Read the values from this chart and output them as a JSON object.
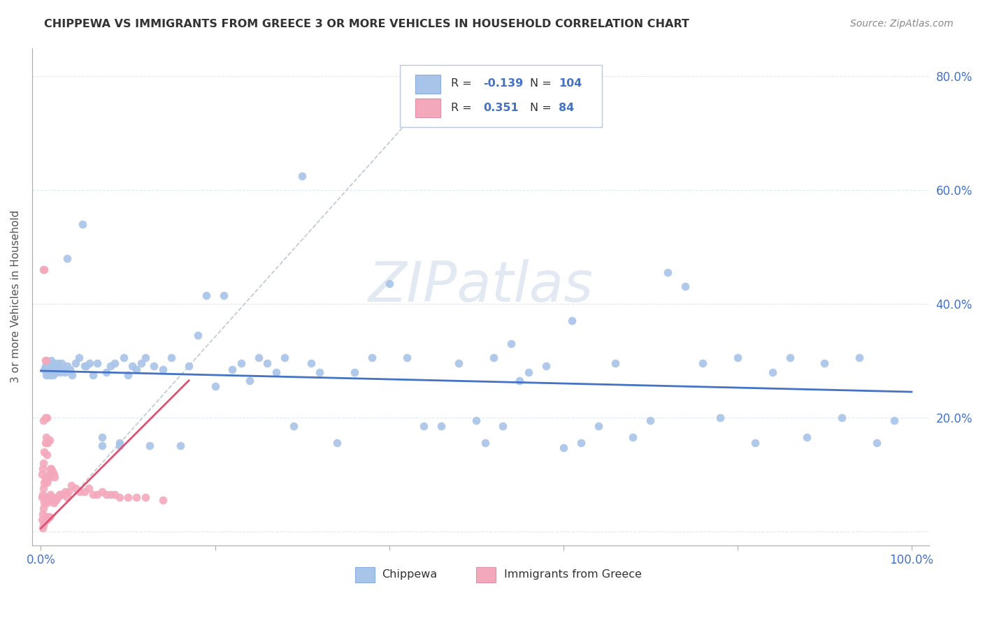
{
  "title": "CHIPPEWA VS IMMIGRANTS FROM GREECE 3 OR MORE VEHICLES IN HOUSEHOLD CORRELATION CHART",
  "source": "Source: ZipAtlas.com",
  "ylabel": "3 or more Vehicles in Household",
  "xlim": [
    -0.01,
    1.02
  ],
  "ylim": [
    -0.025,
    0.85
  ],
  "x_ticks": [
    0.0,
    0.2,
    0.4,
    0.6,
    0.8,
    1.0
  ],
  "x_tick_labels": [
    "0.0%",
    "",
    "",
    "",
    "",
    "100.0%"
  ],
  "y_ticks": [
    0.0,
    0.2,
    0.4,
    0.6,
    0.8
  ],
  "y_tick_labels_right": [
    "",
    "20.0%",
    "40.0%",
    "60.0%",
    "80.0%"
  ],
  "legend_R1": "-0.139",
  "legend_N1": "104",
  "legend_R2": "0.351",
  "legend_N2": "84",
  "blue_color": "#a8c4e8",
  "pink_color": "#f4a8bc",
  "trend_blue": "#4472c4",
  "trend_pink": "#e05070",
  "label_color": "#4472c4",
  "watermark": "ZIPatlas",
  "grid_color": "#e0e8f4",
  "chippewa_x": [
    0.004,
    0.005,
    0.006,
    0.007,
    0.008,
    0.009,
    0.01,
    0.011,
    0.012,
    0.013,
    0.014,
    0.015,
    0.016,
    0.017,
    0.018,
    0.019,
    0.02,
    0.022,
    0.024,
    0.026,
    0.028,
    0.03,
    0.033,
    0.036,
    0.04,
    0.044,
    0.048,
    0.052,
    0.056,
    0.06,
    0.065,
    0.07,
    0.075,
    0.08,
    0.085,
    0.09,
    0.095,
    0.1,
    0.105,
    0.11,
    0.115,
    0.12,
    0.125,
    0.13,
    0.14,
    0.15,
    0.16,
    0.17,
    0.18,
    0.19,
    0.2,
    0.21,
    0.22,
    0.23,
    0.24,
    0.25,
    0.26,
    0.27,
    0.28,
    0.29,
    0.3,
    0.31,
    0.32,
    0.34,
    0.36,
    0.38,
    0.4,
    0.42,
    0.44,
    0.46,
    0.48,
    0.5,
    0.51,
    0.52,
    0.53,
    0.54,
    0.55,
    0.56,
    0.58,
    0.6,
    0.61,
    0.62,
    0.64,
    0.66,
    0.68,
    0.7,
    0.72,
    0.74,
    0.76,
    0.78,
    0.8,
    0.82,
    0.84,
    0.86,
    0.88,
    0.9,
    0.92,
    0.94,
    0.96,
    0.98,
    0.03,
    0.05,
    0.07,
    0.09
  ],
  "chippewa_y": [
    0.285,
    0.29,
    0.275,
    0.295,
    0.28,
    0.285,
    0.275,
    0.29,
    0.3,
    0.285,
    0.275,
    0.295,
    0.285,
    0.28,
    0.285,
    0.29,
    0.295,
    0.28,
    0.295,
    0.285,
    0.28,
    0.29,
    0.285,
    0.275,
    0.295,
    0.305,
    0.54,
    0.29,
    0.295,
    0.275,
    0.295,
    0.15,
    0.28,
    0.29,
    0.295,
    0.155,
    0.305,
    0.275,
    0.29,
    0.285,
    0.295,
    0.305,
    0.15,
    0.29,
    0.285,
    0.305,
    0.15,
    0.29,
    0.345,
    0.415,
    0.255,
    0.415,
    0.285,
    0.295,
    0.265,
    0.305,
    0.295,
    0.28,
    0.305,
    0.185,
    0.625,
    0.295,
    0.28,
    0.155,
    0.28,
    0.305,
    0.435,
    0.305,
    0.185,
    0.185,
    0.295,
    0.195,
    0.155,
    0.305,
    0.185,
    0.33,
    0.265,
    0.28,
    0.29,
    0.147,
    0.37,
    0.155,
    0.185,
    0.295,
    0.165,
    0.195,
    0.455,
    0.43,
    0.295,
    0.2,
    0.305,
    0.155,
    0.28,
    0.305,
    0.165,
    0.295,
    0.2,
    0.305,
    0.155,
    0.195,
    0.48,
    0.29,
    0.165,
    0.15
  ],
  "greece_x": [
    0.001,
    0.001,
    0.001,
    0.002,
    0.002,
    0.002,
    0.002,
    0.003,
    0.003,
    0.003,
    0.003,
    0.003,
    0.004,
    0.004,
    0.004,
    0.004,
    0.005,
    0.005,
    0.005,
    0.005,
    0.005,
    0.006,
    0.006,
    0.006,
    0.006,
    0.007,
    0.007,
    0.007,
    0.007,
    0.007,
    0.008,
    0.008,
    0.008,
    0.008,
    0.009,
    0.009,
    0.009,
    0.01,
    0.01,
    0.01,
    0.01,
    0.011,
    0.011,
    0.012,
    0.012,
    0.013,
    0.013,
    0.014,
    0.014,
    0.015,
    0.015,
    0.016,
    0.016,
    0.017,
    0.018,
    0.019,
    0.02,
    0.021,
    0.022,
    0.024,
    0.026,
    0.028,
    0.03,
    0.032,
    0.035,
    0.04,
    0.045,
    0.05,
    0.055,
    0.06,
    0.065,
    0.07,
    0.075,
    0.08,
    0.085,
    0.09,
    0.1,
    0.11,
    0.12,
    0.14,
    0.004,
    0.005,
    0.003,
    0.006
  ],
  "greece_y": [
    0.02,
    0.06,
    0.1,
    0.005,
    0.03,
    0.065,
    0.11,
    0.01,
    0.04,
    0.075,
    0.12,
    0.195,
    0.015,
    0.05,
    0.085,
    0.14,
    0.02,
    0.055,
    0.09,
    0.155,
    0.2,
    0.025,
    0.06,
    0.095,
    0.165,
    0.02,
    0.05,
    0.085,
    0.135,
    0.2,
    0.025,
    0.055,
    0.09,
    0.155,
    0.025,
    0.06,
    0.1,
    0.025,
    0.06,
    0.095,
    0.16,
    0.065,
    0.11,
    0.06,
    0.11,
    0.055,
    0.105,
    0.055,
    0.1,
    0.05,
    0.1,
    0.055,
    0.095,
    0.055,
    0.06,
    0.06,
    0.06,
    0.065,
    0.065,
    0.065,
    0.065,
    0.07,
    0.06,
    0.07,
    0.08,
    0.075,
    0.07,
    0.07,
    0.075,
    0.065,
    0.065,
    0.07,
    0.065,
    0.065,
    0.065,
    0.06,
    0.06,
    0.06,
    0.06,
    0.055,
    0.46,
    0.3,
    0.46,
    0.3
  ],
  "diag_line_x": [
    0.0,
    0.48
  ],
  "diag_line_y": [
    0.0,
    0.82
  ],
  "blue_trend_x": [
    0.0,
    1.0
  ],
  "blue_trend_y": [
    0.282,
    0.245
  ],
  "pink_trend_x": [
    0.0,
    0.17
  ],
  "pink_trend_y": [
    0.005,
    0.265
  ]
}
